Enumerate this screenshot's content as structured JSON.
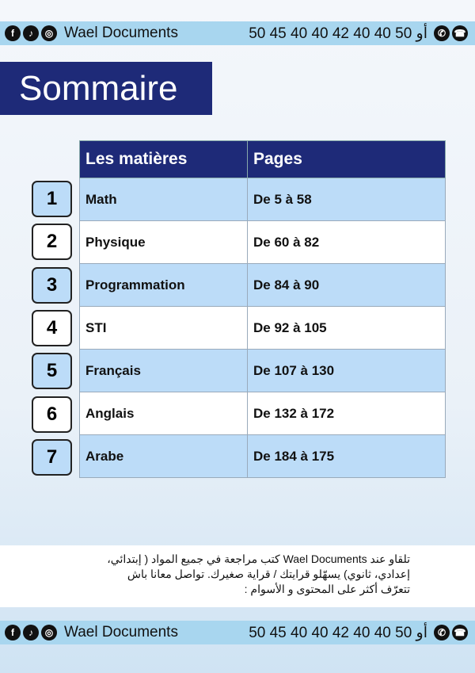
{
  "contact_bar": {
    "brand": "Wael Documents",
    "phones": "50 45 40 40 أو 50 40 40 42",
    "icons": [
      "facebook-icon",
      "tiktok-icon",
      "instagram-icon",
      "whatsapp-icon",
      "phone-icon"
    ]
  },
  "title": "Sommaire",
  "table": {
    "headers": [
      "Les matières",
      "Pages"
    ],
    "rows": [
      {
        "n": "1",
        "subject": "Math",
        "pages": "De 5 à 58"
      },
      {
        "n": "2",
        "subject": "Physique",
        "pages": "De 60 à 82"
      },
      {
        "n": "3",
        "subject": "Programmation",
        "pages": "De 84 à 90"
      },
      {
        "n": "4",
        "subject": "STI",
        "pages": "De 92 à 105"
      },
      {
        "n": "5",
        "subject": "Français",
        "pages": "De 107 à 130"
      },
      {
        "n": "6",
        "subject": "Anglais",
        "pages": "De 132 à 172"
      },
      {
        "n": "7",
        "subject": "Arabe",
        "pages": "De 184 à 175"
      }
    ]
  },
  "footer": {
    "lines": [
      "تلقاو عند Wael Documents كتب مراجعة في جميع المواد ( إبتدائي،",
      "إعدادي، ثانوي) يسهّلو قرايتك / قراية صغيرك. تواصل معانا باش",
      "تتعرّف أكثر على المحتوى و الأسوام :"
    ]
  },
  "colors": {
    "navy": "#1e2a78",
    "bar": "#a8d6ef",
    "row_blue": "#bcdcf8"
  }
}
